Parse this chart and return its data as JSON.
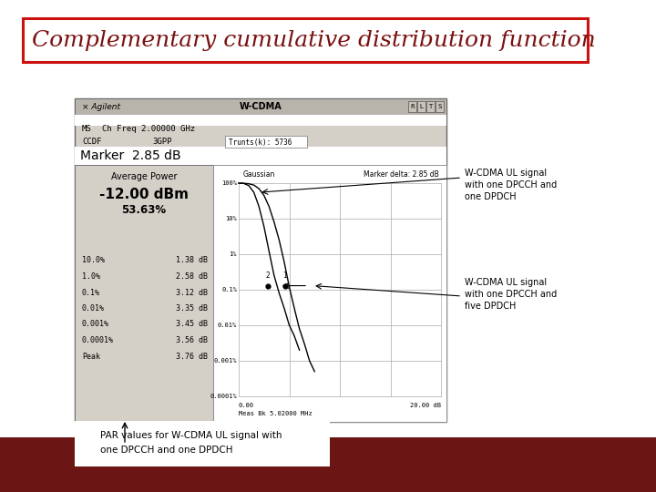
{
  "title": "Complementary cumulative distribution function",
  "title_color": "#7B1010",
  "title_fontsize": 18,
  "title_style": "italic",
  "title_border_color": "#cc1111",
  "bg_color": "#ffffff",
  "bottom_bar_color": "#6B1515",
  "screenshot_bg": "#d4d0c8",
  "agilent_label": "Agilent",
  "wcdma_label": "W-CDMA",
  "marker_line": "Marker  2.85 dB",
  "avg_power_label": "Average Power",
  "avg_power_val": "-12.00 dBm",
  "avg_power_pct": "53.63%",
  "table_data": [
    [
      "10.0%",
      "1.38 dB"
    ],
    [
      "1.0%",
      "2.58 dB"
    ],
    [
      "0.1%",
      "3.12 dB"
    ],
    [
      "0.01%",
      "3.35 dB"
    ],
    [
      "0.001%",
      "3.45 dB"
    ],
    [
      "0.0001%",
      "3.56 dB"
    ],
    [
      "Peak",
      "3.76 dB"
    ]
  ],
  "gaussian_label": "Gaussian",
  "marker_delta": "Marker delta: 2.85 dB",
  "meas_bw": "Meas Bk 5.02000 MHz",
  "annotation1": "W-CDMA UL signal\nwith one DPCCH and\none DPDCH",
  "annotation2": "W-CDMA UL signal\nwith one DPCCH and\nfive DPDCH",
  "bottom_text1": "PAR values for W-CDMA UL signal with",
  "bottom_text2": "one DPCCH and one DPDCH"
}
